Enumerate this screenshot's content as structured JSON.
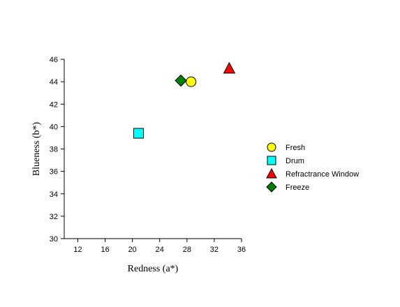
{
  "chart_data": {
    "type": "scatter",
    "xlabel": "Redness (a*)",
    "ylabel": "Blueness (b*)",
    "xlim": [
      10,
      36
    ],
    "ylim": [
      30,
      46
    ],
    "xticks": [
      12,
      16,
      20,
      24,
      28,
      32,
      36
    ],
    "yticks": [
      30,
      32,
      34,
      36,
      38,
      40,
      42,
      44,
      46
    ],
    "grid": false,
    "legend_position": "right",
    "series": [
      {
        "name": "Fresh",
        "marker": "circle",
        "color": "#FFFF00",
        "x": [
          28.6
        ],
        "y": [
          44.0
        ]
      },
      {
        "name": "Drum",
        "marker": "square",
        "color": "#00FFFF",
        "x": [
          20.9
        ],
        "y": [
          39.4
        ]
      },
      {
        "name": "Refractrance Window",
        "marker": "triangle",
        "color": "#FF0000",
        "x": [
          34.2
        ],
        "y": [
          45.2
        ]
      },
      {
        "name": "Freeze",
        "marker": "diamond",
        "color": "#008000",
        "x": [
          27.1
        ],
        "y": [
          44.1
        ]
      }
    ]
  }
}
